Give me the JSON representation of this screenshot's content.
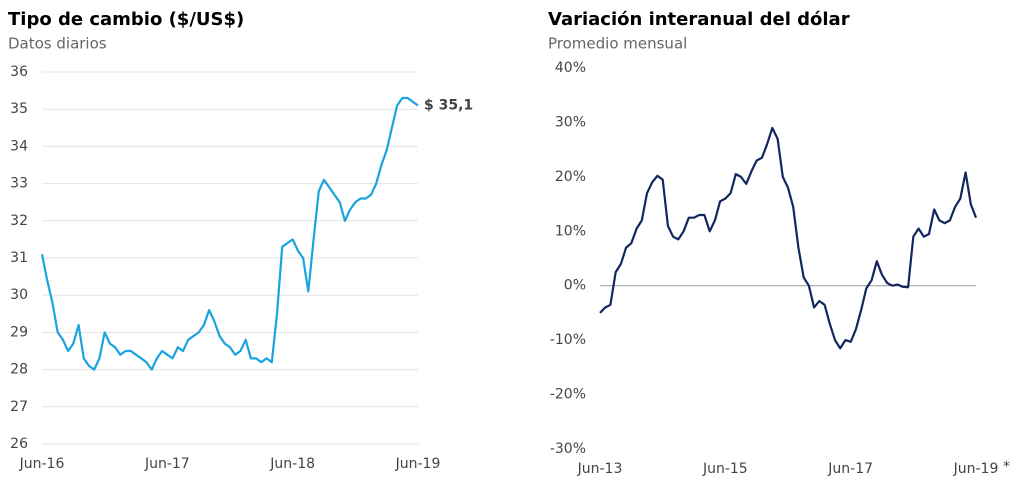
{
  "chart_data": [
    {
      "type": "line",
      "title": "Tipo de cambio ($/US$)",
      "subtitle": "Datos diarios",
      "categories": [
        "Jun-16",
        null,
        null,
        null,
        null,
        null,
        null,
        null,
        null,
        null,
        null,
        null,
        null,
        null,
        null,
        null,
        null,
        null,
        null,
        null,
        null,
        null,
        null,
        null,
        "Jun-17",
        null,
        null,
        null,
        null,
        null,
        null,
        null,
        null,
        null,
        null,
        null,
        null,
        null,
        null,
        null,
        null,
        null,
        null,
        null,
        null,
        null,
        null,
        null,
        "Jun-18",
        null,
        null,
        null,
        null,
        null,
        null,
        null,
        null,
        null,
        null,
        null,
        null,
        null,
        null,
        null,
        null,
        null,
        null,
        null,
        null,
        null,
        null,
        null,
        "Jun-19"
      ],
      "series": [
        {
          "color": "#1aa3dc",
          "values": [
            31.1,
            30.4,
            29.8,
            29.0,
            28.8,
            28.5,
            28.7,
            29.2,
            28.3,
            28.1,
            28.0,
            28.3,
            29.0,
            28.7,
            28.6,
            28.4,
            28.5,
            28.5,
            28.4,
            28.3,
            28.2,
            28.0,
            28.3,
            28.5,
            28.4,
            28.3,
            28.6,
            28.5,
            28.8,
            28.9,
            29.0,
            29.2,
            29.6,
            29.3,
            28.9,
            28.7,
            28.6,
            28.4,
            28.5,
            28.8,
            28.3,
            28.3,
            28.2,
            28.3,
            28.2,
            29.5,
            31.3,
            31.4,
            31.5,
            31.2,
            31.0,
            30.1,
            31.5,
            32.8,
            33.1,
            32.9,
            32.7,
            32.5,
            32.0,
            32.3,
            32.5,
            32.6,
            32.6,
            32.7,
            33.0,
            33.5,
            33.9,
            34.5,
            35.1,
            35.3,
            35.3,
            35.2,
            35.1
          ]
        }
      ],
      "end_label": "$ 35,1",
      "ylim": [
        26,
        36
      ],
      "yticks": [
        26,
        27,
        28,
        29,
        30,
        31,
        32,
        33,
        34,
        35,
        36
      ],
      "grid": true
    },
    {
      "type": "line",
      "title": "Variación interanual del dólar",
      "subtitle": "Promedio mensual",
      "categories": [
        "Jun-13",
        null,
        null,
        null,
        null,
        null,
        null,
        null,
        null,
        null,
        null,
        null,
        null,
        null,
        null,
        null,
        null,
        null,
        null,
        null,
        null,
        null,
        null,
        null,
        "Jun-15",
        null,
        null,
        null,
        null,
        null,
        null,
        null,
        null,
        null,
        null,
        null,
        null,
        null,
        null,
        null,
        null,
        null,
        null,
        null,
        null,
        null,
        null,
        null,
        "Jun-17",
        null,
        null,
        null,
        null,
        null,
        null,
        null,
        null,
        null,
        null,
        null,
        null,
        null,
        null,
        null,
        null,
        null,
        null,
        null,
        null,
        null,
        null,
        null,
        "Jun-19"
      ],
      "footnote_mark": "*",
      "series": [
        {
          "color": "#13275f",
          "values": [
            -5,
            -4,
            -3.5,
            2.5,
            4,
            7,
            7.8,
            10.5,
            12,
            17,
            19,
            20.2,
            19.5,
            11,
            9,
            8.5,
            10,
            12.5,
            12.5,
            13,
            13,
            10,
            12,
            15.5,
            16,
            17,
            20.5,
            20,
            18.7,
            21,
            23,
            23.5,
            26,
            29,
            27,
            20,
            18,
            14.5,
            7,
            1.5,
            0,
            -4,
            -2.8,
            -3.5,
            -7,
            -10,
            -11.5,
            -10,
            -10.3,
            -8,
            -4.5,
            -0.5,
            1,
            4.5,
            2,
            0.5,
            0,
            0.2,
            -0.2,
            -0.3,
            9,
            10.5,
            9,
            9.5,
            14,
            12,
            11.5,
            12,
            14.5,
            16,
            20.8,
            15,
            12.5
          ]
        }
      ],
      "ylim": [
        -30,
        40
      ],
      "yticks": [
        {
          "value": -30,
          "label": "-30%"
        },
        {
          "value": -20,
          "label": "-20%"
        },
        {
          "value": -10,
          "label": "-10%"
        },
        {
          "value": 0,
          "label": "0%"
        },
        {
          "value": 10,
          "label": "10%"
        },
        {
          "value": 20,
          "label": "20%"
        },
        {
          "value": 30,
          "label": "30%"
        },
        {
          "value": 40,
          "label": "40%"
        }
      ],
      "grid": false,
      "zero_line": true
    }
  ]
}
